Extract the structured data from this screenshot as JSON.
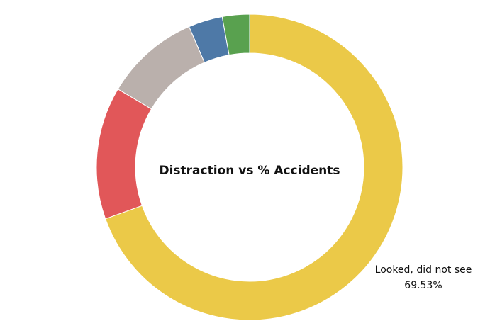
{
  "chart_data": {
    "type": "pie",
    "style": "donut",
    "title": "Distraction vs % Accidents",
    "start_angle_deg": 0,
    "direction": "clockwise",
    "slices": [
      {
        "value": 69.53,
        "color": "#EBC948",
        "label": "Looked, did not see",
        "value_label": "69.53%"
      },
      {
        "value": 14.0,
        "color": "#E15759",
        "label": "",
        "value_label": ""
      },
      {
        "value": 10.0,
        "color": "#BAB0AC",
        "label": "",
        "value_label": ""
      },
      {
        "value": 3.6,
        "color": "#4E79A7",
        "label": "",
        "value_label": ""
      },
      {
        "value": 2.87,
        "color": "#59A14F",
        "label": "",
        "value_label": ""
      }
    ]
  }
}
